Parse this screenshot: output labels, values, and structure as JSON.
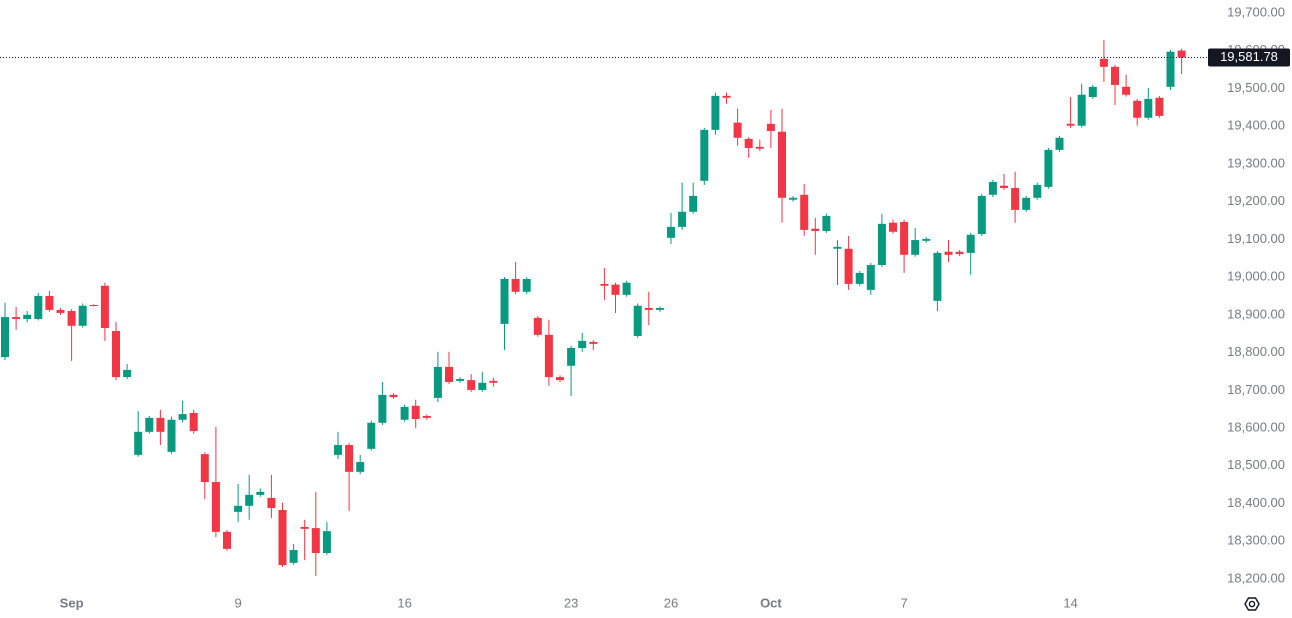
{
  "chart_data": {
    "type": "candlestick",
    "categories": [
      null,
      null,
      null,
      null,
      null,
      null,
      "Sep",
      null,
      null,
      null,
      null,
      null,
      null,
      null,
      null,
      null,
      null,
      null,
      null,
      null,
      null,
      "9",
      null,
      null,
      null,
      null,
      null,
      null,
      null,
      null,
      null,
      null,
      null,
      null,
      null,
      null,
      "16",
      null,
      null,
      null,
      null,
      null,
      null,
      null,
      null,
      null,
      null,
      null,
      null,
      null,
      null,
      "23",
      null,
      null,
      null,
      null,
      null,
      null,
      null,
      null,
      "26",
      null,
      null,
      null,
      null,
      null,
      null,
      null,
      null,
      "Oct",
      null,
      null,
      null,
      null,
      null,
      null,
      null,
      null,
      null,
      null,
      null,
      "7",
      null,
      null,
      null,
      null,
      null,
      null,
      null,
      null,
      null,
      null,
      null,
      null,
      null,
      null,
      "14",
      null,
      null,
      null,
      null,
      null,
      null,
      null,
      null,
      null,
      null
    ],
    "open": [
      18788,
      18894,
      18889,
      18889,
      18950,
      18913,
      18910,
      18871,
      18926,
      18977,
      18857,
      18735,
      18529,
      18590,
      18627,
      18537,
      18622,
      18640,
      18531,
      18457,
      18325,
      18378,
      18394,
      18423,
      18415,
      18383,
      18243,
      18338,
      18335,
      18269,
      18529,
      18555,
      18484,
      18545,
      18614,
      18688,
      18622,
      18659,
      18632,
      18680,
      18762,
      18725,
      18727,
      18701,
      18725,
      18876,
      18995,
      18961,
      18892,
      18847,
      18735,
      18765,
      18812,
      18828,
      18982,
      18980,
      18953,
      18844,
      18918,
      18913,
      19104,
      19133,
      19173,
      19255,
      19390,
      19480,
      19409,
      19366,
      19345,
      19406,
      19385,
      19205,
      19218,
      19128,
      19122,
      19075,
      19075,
      18982,
      18966,
      19032,
      19144,
      19146,
      19059,
      19096,
      18937,
      19067,
      19067,
      19064,
      19114,
      19218,
      19242,
      19236,
      19178,
      19210,
      19239,
      19337,
      19406,
      19401,
      19477,
      19578,
      19557,
      19504,
      19467,
      19422,
      19475,
      19504,
      19600
    ],
    "high": [
      18932,
      18921,
      18910,
      18958,
      18963,
      18918,
      18915,
      18930,
      18928,
      18985,
      18881,
      18770,
      18645,
      18632,
      18648,
      18630,
      18672,
      18648,
      18536,
      18603,
      18330,
      18452,
      18476,
      18440,
      18476,
      18402,
      18293,
      18357,
      18431,
      18351,
      18590,
      18560,
      18529,
      18620,
      18722,
      18692,
      18662,
      18675,
      18636,
      18802,
      18802,
      18735,
      18743,
      18749,
      18733,
      19000,
      19040,
      19000,
      18897,
      18887,
      18740,
      18818,
      18852,
      18833,
      19024,
      18985,
      18990,
      18930,
      18961,
      18922,
      19170,
      19250,
      19250,
      19395,
      19488,
      19488,
      19446,
      19371,
      19364,
      19443,
      19446,
      19215,
      19247,
      19157,
      19168,
      19098,
      19109,
      19016,
      19037,
      19167,
      19152,
      19152,
      19130,
      19106,
      19069,
      19098,
      19072,
      19117,
      19220,
      19258,
      19273,
      19279,
      19215,
      19250,
      19342,
      19374,
      19477,
      19512,
      19509,
      19628,
      19562,
      19536,
      19472,
      19501,
      19480,
      19602,
      19605
    ],
    "low": [
      18780,
      18860,
      18880,
      18885,
      18908,
      18900,
      18778,
      18866,
      18922,
      18831,
      18727,
      18730,
      18524,
      18585,
      18555,
      18532,
      18615,
      18585,
      18412,
      18311,
      18275,
      18351,
      18357,
      18418,
      18362,
      18232,
      18238,
      18250,
      18208,
      18264,
      18518,
      18380,
      18478,
      18540,
      18608,
      18678,
      18617,
      18600,
      18622,
      18669,
      18717,
      18720,
      18696,
      18696,
      18710,
      18807,
      18955,
      18955,
      18842,
      18712,
      18722,
      18685,
      18802,
      18807,
      18939,
      18905,
      18948,
      18839,
      18873,
      18908,
      19088,
      19125,
      19168,
      19244,
      19377,
      19459,
      19348,
      19316,
      19334,
      19342,
      19144,
      19200,
      19109,
      19059,
      19117,
      18979,
      18966,
      18977,
      18953,
      19027,
      19115,
      19011,
      19054,
      19091,
      18910,
      19040,
      19056,
      19006,
      19109,
      19212,
      19231,
      19144,
      19173,
      19205,
      19234,
      19332,
      19395,
      19396,
      19472,
      19517,
      19456,
      19478,
      19401,
      19417,
      19422,
      19496,
      19538
    ],
    "close": [
      18894,
      18889,
      18900,
      18950,
      18913,
      18905,
      18871,
      18924,
      18924,
      18865,
      18735,
      18754,
      18590,
      18627,
      18590,
      18622,
      18637,
      18592,
      18457,
      18325,
      18280,
      18394,
      18423,
      18431,
      18388,
      18237,
      18277,
      18333,
      18269,
      18327,
      18555,
      18484,
      18510,
      18614,
      18688,
      18682,
      18656,
      18624,
      18627,
      18762,
      18722,
      18730,
      18701,
      18720,
      18720,
      18995,
      18961,
      18995,
      18847,
      18735,
      18727,
      18812,
      18831,
      18823,
      18977,
      18953,
      18985,
      18924,
      18913,
      18918,
      19133,
      19173,
      19215,
      19390,
      19480,
      19475,
      19369,
      19342,
      19340,
      19387,
      19210,
      19210,
      19125,
      19122,
      19162,
      19080,
      18982,
      19011,
      19032,
      19141,
      19120,
      19059,
      19098,
      19101,
      19064,
      19059,
      19061,
      19112,
      19215,
      19252,
      19236,
      19178,
      19210,
      19244,
      19337,
      19369,
      19401,
      19483,
      19504,
      19557,
      19509,
      19483,
      19422,
      19472,
      19427,
      19597,
      19581.78
    ],
    "up_color": "#089981",
    "down_color": "#f23645",
    "last_price_label": "19,581.78",
    "ylim": [
      18171,
      19734
    ],
    "yticks": [
      {
        "value": 19700,
        "label": "19,700.00"
      },
      {
        "value": 19600,
        "label": "19,600.00"
      },
      {
        "value": 19500,
        "label": "19,500.00"
      },
      {
        "value": 19400,
        "label": "19,400.00"
      },
      {
        "value": 19300,
        "label": "19,300.00"
      },
      {
        "value": 19200,
        "label": "19,200.00"
      },
      {
        "value": 19100,
        "label": "19,100.00"
      },
      {
        "value": 19000,
        "label": "19,000.00"
      },
      {
        "value": 18900,
        "label": "18,900.00"
      },
      {
        "value": 18800,
        "label": "18,800.00"
      },
      {
        "value": 18700,
        "label": "18,700.00"
      },
      {
        "value": 18600,
        "label": "18,600.00"
      },
      {
        "value": 18500,
        "label": "18,500.00"
      },
      {
        "value": 18400,
        "label": "18,400.00"
      },
      {
        "value": 18300,
        "label": "18,300.00"
      },
      {
        "value": 18200,
        "label": "18,200.00"
      }
    ]
  }
}
